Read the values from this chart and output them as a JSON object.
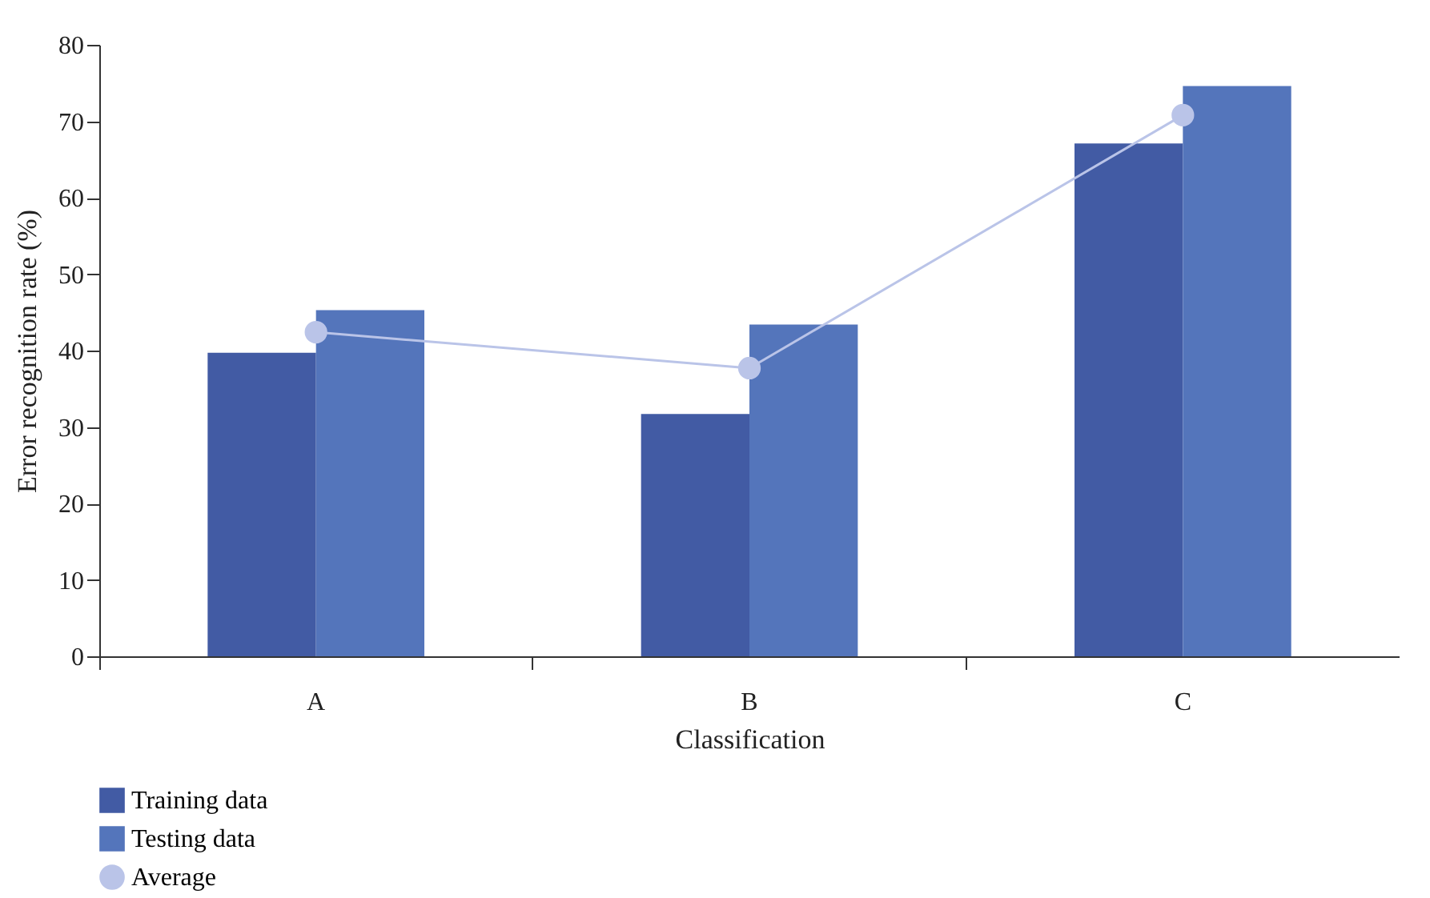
{
  "chart_data": {
    "type": "bar",
    "xlabel": "Classification",
    "ylabel": "Error recognition rate (%)",
    "categories": [
      "A",
      "B",
      "C"
    ],
    "series": [
      {
        "name": "Training data",
        "color": "#425ba4",
        "values": [
          39.7,
          31.7,
          67.1
        ]
      },
      {
        "name": "Testing data",
        "color": "#5475bb",
        "values": [
          45.3,
          43.4,
          74.6
        ]
      },
      {
        "name": "Average",
        "type": "line",
        "color": "#bac4e8",
        "values": [
          42.4,
          37.7,
          70.8
        ]
      }
    ],
    "ylim": [
      0,
      80
    ],
    "yticks": [
      0,
      10,
      20,
      30,
      40,
      50,
      60,
      70,
      80
    ],
    "grid": false,
    "legend": "bottom left",
    "marker": "circle",
    "line_style": "solid"
  }
}
